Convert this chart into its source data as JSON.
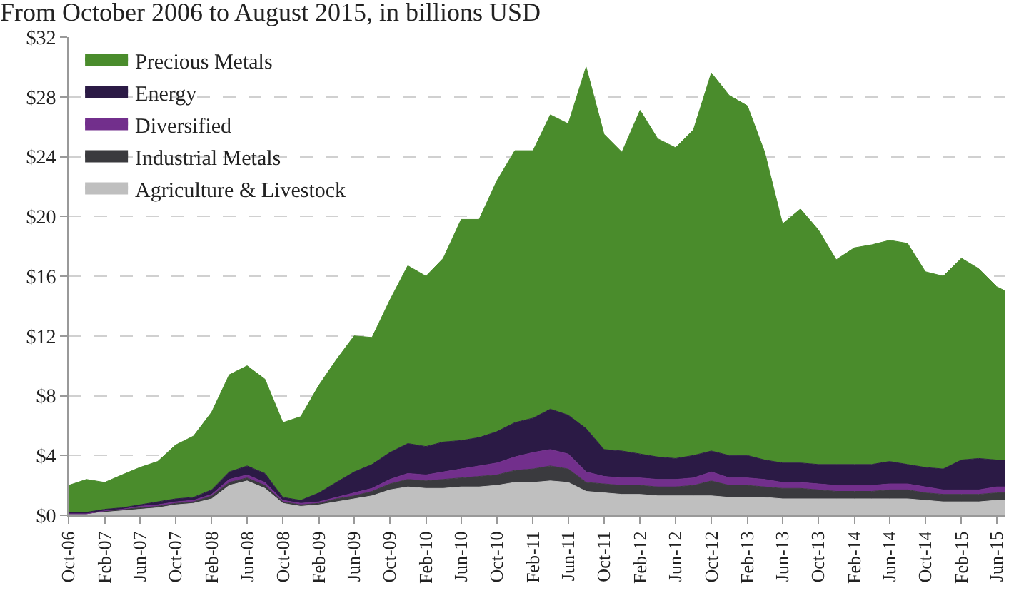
{
  "chart_data": {
    "type": "area",
    "stacked": true,
    "title": "From October 2006 to August 2015, in billions USD",
    "x": [
      "2006-10",
      "2006-12",
      "2007-02",
      "2007-04",
      "2007-06",
      "2007-08",
      "2007-10",
      "2007-12",
      "2008-02",
      "2008-04",
      "2008-06",
      "2008-08",
      "2008-10",
      "2008-12",
      "2009-02",
      "2009-04",
      "2009-06",
      "2009-08",
      "2009-10",
      "2009-12",
      "2010-02",
      "2010-04",
      "2010-06",
      "2010-08",
      "2010-10",
      "2010-12",
      "2011-02",
      "2011-04",
      "2011-06",
      "2011-08",
      "2011-10",
      "2011-12",
      "2012-02",
      "2012-04",
      "2012-06",
      "2012-08",
      "2012-10",
      "2012-12",
      "2013-02",
      "2013-04",
      "2013-06",
      "2013-08",
      "2013-10",
      "2013-12",
      "2014-02",
      "2014-04",
      "2014-06",
      "2014-08",
      "2014-10",
      "2014-12",
      "2015-02",
      "2015-04",
      "2015-06",
      "2015-07"
    ],
    "series": [
      {
        "name": "Agriculture & Livestock",
        "color": "#bfbfbf",
        "values": [
          0.1,
          0.1,
          0.2,
          0.3,
          0.4,
          0.5,
          0.7,
          0.8,
          1.1,
          2.0,
          2.3,
          1.8,
          0.8,
          0.6,
          0.7,
          0.9,
          1.1,
          1.3,
          1.7,
          1.9,
          1.8,
          1.8,
          1.9,
          1.9,
          2.0,
          2.2,
          2.2,
          2.3,
          2.2,
          1.6,
          1.5,
          1.4,
          1.4,
          1.3,
          1.3,
          1.3,
          1.3,
          1.2,
          1.2,
          1.2,
          1.1,
          1.1,
          1.1,
          1.1,
          1.1,
          1.1,
          1.1,
          1.1,
          1.0,
          0.9,
          0.9,
          0.9,
          1.0,
          1.0
        ]
      },
      {
        "name": "Industrial Metals",
        "color": "#3a3a3e",
        "values": [
          0.0,
          0.0,
          0.1,
          0.1,
          0.1,
          0.1,
          0.1,
          0.1,
          0.2,
          0.2,
          0.2,
          0.2,
          0.1,
          0.1,
          0.1,
          0.2,
          0.2,
          0.3,
          0.4,
          0.5,
          0.5,
          0.6,
          0.6,
          0.7,
          0.7,
          0.8,
          0.9,
          1.0,
          0.9,
          0.6,
          0.6,
          0.6,
          0.6,
          0.6,
          0.6,
          0.7,
          1.0,
          0.8,
          0.8,
          0.7,
          0.7,
          0.7,
          0.6,
          0.5,
          0.5,
          0.5,
          0.6,
          0.6,
          0.5,
          0.5,
          0.5,
          0.5,
          0.5,
          0.5
        ]
      },
      {
        "name": "Diversified",
        "color": "#722f8c",
        "values": [
          0.0,
          0.0,
          0.0,
          0.0,
          0.1,
          0.1,
          0.1,
          0.1,
          0.1,
          0.2,
          0.2,
          0.2,
          0.1,
          0.1,
          0.1,
          0.1,
          0.2,
          0.2,
          0.3,
          0.4,
          0.4,
          0.5,
          0.6,
          0.7,
          0.8,
          0.9,
          1.1,
          1.1,
          1.0,
          0.7,
          0.5,
          0.5,
          0.5,
          0.5,
          0.5,
          0.5,
          0.6,
          0.5,
          0.5,
          0.5,
          0.4,
          0.4,
          0.4,
          0.4,
          0.4,
          0.4,
          0.4,
          0.4,
          0.4,
          0.3,
          0.3,
          0.3,
          0.4,
          0.4
        ]
      },
      {
        "name": "Energy",
        "color": "#2b1a45",
        "values": [
          0.1,
          0.1,
          0.1,
          0.1,
          0.1,
          0.2,
          0.2,
          0.2,
          0.3,
          0.5,
          0.6,
          0.6,
          0.2,
          0.2,
          0.6,
          1.0,
          1.4,
          1.6,
          1.8,
          2.0,
          1.9,
          2.0,
          1.9,
          1.9,
          2.1,
          2.3,
          2.3,
          2.7,
          2.6,
          2.9,
          1.8,
          1.8,
          1.6,
          1.5,
          1.4,
          1.5,
          1.4,
          1.5,
          1.5,
          1.3,
          1.3,
          1.3,
          1.3,
          1.4,
          1.4,
          1.4,
          1.5,
          1.3,
          1.3,
          1.4,
          2.0,
          2.1,
          1.8,
          1.8
        ]
      },
      {
        "name": "Precious Metals",
        "color": "#4a8c2c",
        "values": [
          1.8,
          2.2,
          1.8,
          2.2,
          2.5,
          2.7,
          3.6,
          4.1,
          5.2,
          6.5,
          6.7,
          6.3,
          5.0,
          5.6,
          7.2,
          8.2,
          9.1,
          8.5,
          10.2,
          11.9,
          11.4,
          12.3,
          14.8,
          14.6,
          16.8,
          18.2,
          17.9,
          19.7,
          19.5,
          24.2,
          21.1,
          20.0,
          23.0,
          21.3,
          20.8,
          21.8,
          25.3,
          24.1,
          23.4,
          20.6,
          16.0,
          17.0,
          15.7,
          13.7,
          14.5,
          14.7,
          14.8,
          14.8,
          13.1,
          12.9,
          13.5,
          12.7,
          11.6,
          11.3
        ]
      }
    ],
    "xlim": [
      "2006-10",
      "2015-07"
    ],
    "xticks": [
      {
        "value": "2006-10",
        "label": "Oct-06"
      },
      {
        "value": "2007-02",
        "label": "Feb-07"
      },
      {
        "value": "2007-06",
        "label": "Jun-07"
      },
      {
        "value": "2007-10",
        "label": "Oct-07"
      },
      {
        "value": "2008-02",
        "label": "Feb-08"
      },
      {
        "value": "2008-06",
        "label": "Jun-08"
      },
      {
        "value": "2008-10",
        "label": "Oct-08"
      },
      {
        "value": "2009-02",
        "label": "Feb-09"
      },
      {
        "value": "2009-06",
        "label": "Jun-09"
      },
      {
        "value": "2009-10",
        "label": "Oct-09"
      },
      {
        "value": "2010-02",
        "label": "Feb-10"
      },
      {
        "value": "2010-06",
        "label": "Jun-10"
      },
      {
        "value": "2010-10",
        "label": "Oct-10"
      },
      {
        "value": "2011-02",
        "label": "Feb-11"
      },
      {
        "value": "2011-06",
        "label": "Jun-11"
      },
      {
        "value": "2011-10",
        "label": "Oct-11"
      },
      {
        "value": "2012-02",
        "label": "Feb-12"
      },
      {
        "value": "2012-06",
        "label": "Jun-12"
      },
      {
        "value": "2012-10",
        "label": "Oct-12"
      },
      {
        "value": "2013-02",
        "label": "Feb-13"
      },
      {
        "value": "2013-06",
        "label": "Jun-13"
      },
      {
        "value": "2013-10",
        "label": "Oct-13"
      },
      {
        "value": "2014-02",
        "label": "Feb-14"
      },
      {
        "value": "2014-06",
        "label": "Jun-14"
      },
      {
        "value": "2014-10",
        "label": "Oct-14"
      },
      {
        "value": "2015-02",
        "label": "Feb-15"
      },
      {
        "value": "2015-06",
        "label": "Jun-15"
      }
    ],
    "ylim": [
      0,
      32
    ],
    "yticks": [
      {
        "value": 0,
        "label": "$0"
      },
      {
        "value": 4,
        "label": "$4"
      },
      {
        "value": 8,
        "label": "$8"
      },
      {
        "value": 12,
        "label": "$12"
      },
      {
        "value": 16,
        "label": "$16"
      },
      {
        "value": 20,
        "label": "$20"
      },
      {
        "value": 24,
        "label": "$24"
      },
      {
        "value": 28,
        "label": "$28"
      },
      {
        "value": 32,
        "label": "$32"
      }
    ],
    "grid": "y",
    "legend": "top left"
  }
}
